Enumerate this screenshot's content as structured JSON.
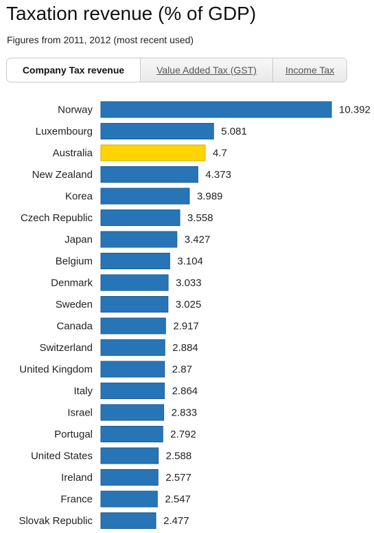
{
  "title": "Taxation revenue (% of GDP)",
  "subtitle": "Figures from 2011, 2012 (most recent used)",
  "tabs": [
    {
      "label": "Company Tax revenue",
      "active": true
    },
    {
      "label": "Value Added Tax (GST)",
      "active": false
    },
    {
      "label": "Income Tax",
      "active": false
    }
  ],
  "colors": {
    "bar": "#2775b6",
    "highlight": "#ffd400"
  },
  "chart_data": {
    "type": "bar",
    "orientation": "horizontal",
    "categories": [
      "Norway",
      "Luxembourg",
      "Australia",
      "New Zealand",
      "Korea",
      "Czech Republic",
      "Japan",
      "Belgium",
      "Denmark",
      "Sweden",
      "Canada",
      "Switzerland",
      "United Kingdom",
      "Italy",
      "Israel",
      "Portugal",
      "United States",
      "Ireland",
      "France",
      "Slovak Republic"
    ],
    "values": [
      10.392,
      5.081,
      4.7,
      4.373,
      3.989,
      3.558,
      3.427,
      3.104,
      3.033,
      3.025,
      2.917,
      2.884,
      2.87,
      2.864,
      2.833,
      2.792,
      2.588,
      2.577,
      2.547,
      2.477
    ],
    "value_labels": [
      "10.392",
      "5.081",
      "4.7",
      "4.373",
      "3.989",
      "3.558",
      "3.427",
      "3.104",
      "3.033",
      "3.025",
      "2.917",
      "2.884",
      "2.87",
      "2.864",
      "2.833",
      "2.792",
      "2.588",
      "2.577",
      "2.547",
      "2.477"
    ],
    "highlight": "Australia",
    "xlim": [
      0,
      10.392
    ],
    "grid": false,
    "legend": "none"
  }
}
